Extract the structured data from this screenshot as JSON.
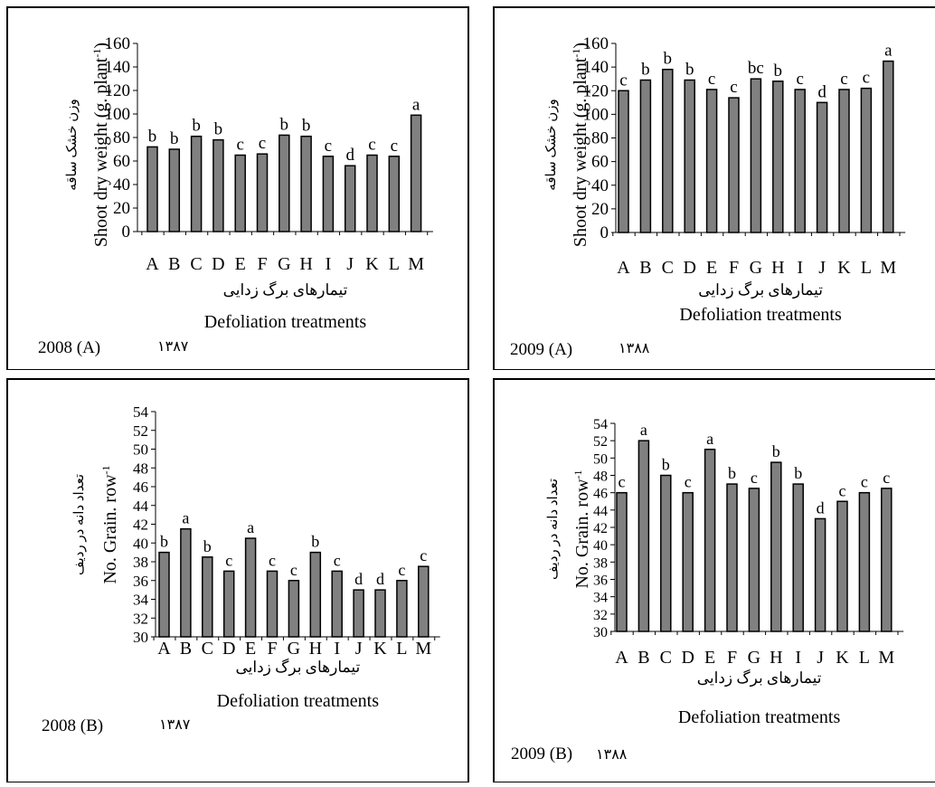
{
  "chart_data": [
    {
      "type": "bar",
      "categories": [
        "A",
        "B",
        "C",
        "D",
        "E",
        "F",
        "G",
        "H",
        "I",
        "J",
        "K",
        "L",
        "M"
      ],
      "values": [
        72,
        70,
        81,
        78,
        65,
        66,
        82,
        81,
        64,
        56,
        65,
        64,
        99
      ],
      "letters": [
        "b",
        "b",
        "b",
        "b",
        "c",
        "c",
        "b",
        "b",
        "c",
        "d",
        "c",
        "c",
        "a"
      ],
      "ylim": [
        0,
        160
      ],
      "yticks": [
        0,
        20,
        40,
        60,
        80,
        100,
        120,
        140,
        160
      ],
      "ylabel": "Shoot dry weight (g. plant-1)",
      "ylabel_fa": "وزن خشک ساقه",
      "xlabel_fa": "تیمارهای برگ زدایی",
      "xlabel": "Defoliation treatments",
      "year_label": "2008 (A)",
      "year_fa": "۱۳۸۷"
    },
    {
      "type": "bar",
      "categories": [
        "A",
        "B",
        "C",
        "D",
        "E",
        "F",
        "G",
        "H",
        "I",
        "J",
        "K",
        "L",
        "M"
      ],
      "values": [
        120,
        129,
        138,
        129,
        121,
        114,
        130,
        128,
        121,
        110,
        121,
        122,
        145
      ],
      "letters": [
        "c",
        "b",
        "b",
        "b",
        "c",
        "c",
        "bc",
        "b",
        "c",
        "d",
        "c",
        "c",
        "a"
      ],
      "ylim": [
        0,
        160
      ],
      "yticks": [
        0,
        20,
        40,
        60,
        80,
        100,
        120,
        140,
        160
      ],
      "ylabel": "Shoot dry weight (g. plant-1)",
      "ylabel_fa": "وزن خشک ساقه",
      "xlabel_fa": "تیمارهای برگ زدایی",
      "xlabel": "Defoliation treatments",
      "year_label": "2009 (A)",
      "year_fa": "۱۳۸۸"
    },
    {
      "type": "bar",
      "categories": [
        "A",
        "B",
        "C",
        "D",
        "E",
        "F",
        "G",
        "H",
        "I",
        "J",
        "K",
        "L",
        "M"
      ],
      "values": [
        39,
        41.5,
        38.5,
        37,
        40.5,
        37,
        36,
        39,
        37,
        35,
        35,
        36,
        37.5
      ],
      "letters": [
        "b",
        "a",
        "b",
        "c",
        "a",
        "c",
        "c",
        "b",
        "c",
        "d",
        "d",
        "c",
        "c"
      ],
      "ylim": [
        30,
        54
      ],
      "yticks": [
        30,
        32,
        34,
        36,
        38,
        40,
        42,
        44,
        46,
        48,
        50,
        52,
        54
      ],
      "ylabel": "No. Grain. row-1",
      "ylabel_fa": "تعداد دانه در ردیف",
      "xlabel_fa": "تیمارهای برگ زدایی",
      "xlabel": "Defoliation treatments",
      "year_label": "2008 (B)",
      "year_fa": "۱۳۸۷"
    },
    {
      "type": "bar",
      "categories": [
        "A",
        "B",
        "C",
        "D",
        "E",
        "F",
        "G",
        "H",
        "I",
        "J",
        "K",
        "L",
        "M"
      ],
      "values": [
        46,
        52,
        48,
        46,
        51,
        47,
        46.5,
        49.5,
        47,
        43,
        45,
        46,
        46.5
      ],
      "letters": [
        "c",
        "a",
        "b",
        "c",
        "a",
        "b",
        "c",
        "b",
        "b",
        "d",
        "c",
        "c",
        "c"
      ],
      "ylim": [
        30,
        54
      ],
      "yticks": [
        30,
        32,
        34,
        36,
        38,
        40,
        42,
        44,
        46,
        48,
        50,
        52,
        54
      ],
      "ylabel": "No. Grain. row-1",
      "ylabel_fa": "تعداد دانه در ردیف",
      "xlabel_fa": "تیمارهای برگ زدایی",
      "xlabel": "Defoliation treatments",
      "year_label": "2009 (B)",
      "year_fa": "۱۳۸۸"
    }
  ]
}
